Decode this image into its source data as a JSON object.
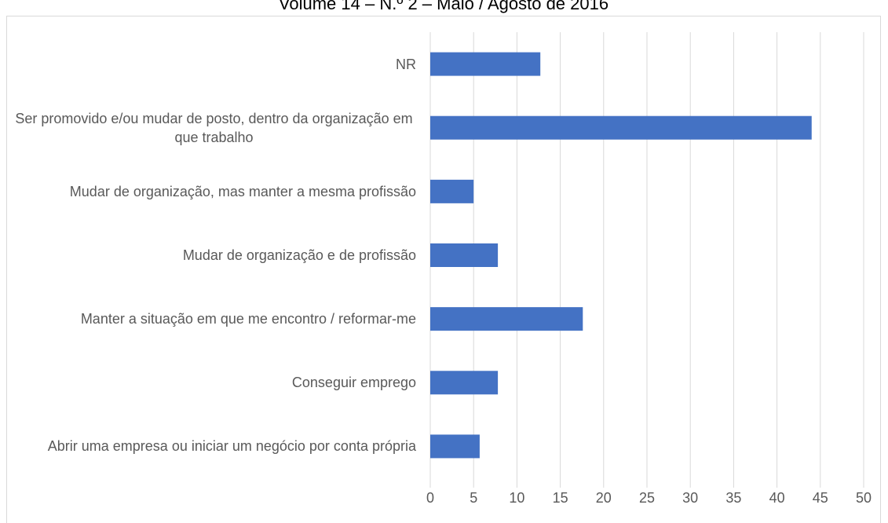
{
  "chart_data": {
    "type": "bar",
    "orientation": "horizontal",
    "title": "Volume 14 – N.º 2 – Maio / Agosto de 2016",
    "categories": [
      "NR",
      "Ser promovido e/ou mudar de posto, dentro da organização em que trabalho",
      "Mudar de organização, mas manter a mesma profissão",
      "Mudar de organização e de profissão",
      "Manter a situação em que me encontro / reformar-me",
      "Conseguir emprego",
      "Abrir uma empresa ou iniciar um negócio por conta própria"
    ],
    "values": [
      12.7,
      44.0,
      5.0,
      7.8,
      17.6,
      7.8,
      5.7
    ],
    "color": "#4472c4",
    "xlim": [
      0,
      50
    ],
    "xticks": [
      0,
      5,
      10,
      15,
      20,
      25,
      30,
      35,
      40,
      45,
      50
    ],
    "grid": true
  }
}
